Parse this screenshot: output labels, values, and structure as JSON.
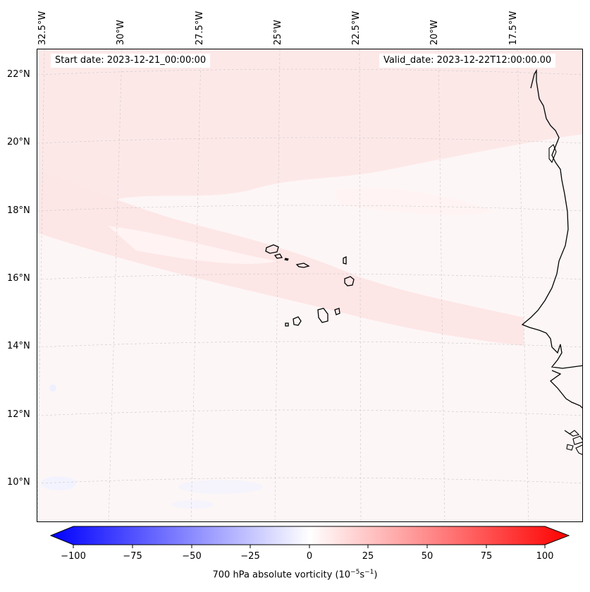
{
  "map": {
    "start_date": "Start date: 2023-12-21_00:00:00",
    "valid_date": "Valid_date: 2023-12-22T12:00:00.00",
    "lon_labels": [
      "32.5°W",
      "30°W",
      "27.5°W",
      "25°W",
      "22.5°W",
      "20°W",
      "17.5°W"
    ],
    "lat_labels": [
      "22°N",
      "20°N",
      "18°N",
      "16°N",
      "14°N",
      "12°N",
      "10°N"
    ],
    "field_colors": {
      "background": "#fdf6f6",
      "band": "#fde6e6",
      "weak_negative": "#f3f3ff"
    }
  },
  "colorbar": {
    "label": "700 hPa absolute vorticity (10",
    "label_exp1": "−5",
    "label_mid": "s",
    "label_exp2": "−1",
    "label_end": ")",
    "ticks": [
      "−100",
      "−75",
      "−50",
      "−25",
      "0",
      "25",
      "50",
      "75",
      "100"
    ],
    "min": -100,
    "max": 100,
    "colors": {
      "low": "#0000ff",
      "mid": "#ffffff",
      "high": "#ff0000"
    }
  }
}
